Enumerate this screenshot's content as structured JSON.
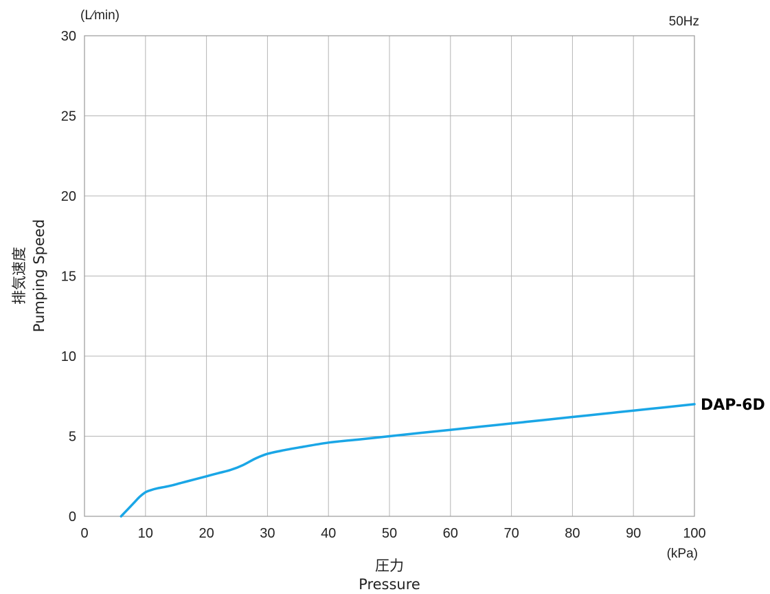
{
  "chart_data": {
    "type": "line",
    "y_unit": "(L∕min)",
    "x_unit": "(kPa)",
    "frequency": "50Hz",
    "ylabel_jp": "排気速度",
    "ylabel": "Pumping Speed",
    "xlabel_jp": "圧力",
    "xlabel": "Pressure",
    "xlim": [
      0,
      100
    ],
    "ylim": [
      0,
      30
    ],
    "x_ticks": [
      0,
      10,
      20,
      30,
      40,
      50,
      60,
      70,
      80,
      90,
      100
    ],
    "y_ticks": [
      0,
      5,
      10,
      15,
      20,
      25,
      30
    ],
    "grid": true,
    "series": [
      {
        "name": "DAP-6D",
        "color": "#1aa6e6",
        "x": [
          6,
          7,
          8,
          9,
          10,
          11,
          12,
          14,
          16,
          18,
          20,
          22,
          24,
          26,
          28,
          30,
          33,
          36,
          40,
          45,
          50,
          55,
          60,
          65,
          70,
          75,
          80,
          85,
          90,
          95,
          100
        ],
        "y": [
          0,
          0.4,
          0.8,
          1.2,
          1.5,
          1.65,
          1.75,
          1.9,
          2.1,
          2.3,
          2.5,
          2.7,
          2.9,
          3.2,
          3.6,
          3.9,
          4.15,
          4.35,
          4.6,
          4.8,
          5.0,
          5.2,
          5.4,
          5.6,
          5.8,
          6.0,
          6.2,
          6.4,
          6.6,
          6.8,
          7.0
        ]
      }
    ]
  }
}
